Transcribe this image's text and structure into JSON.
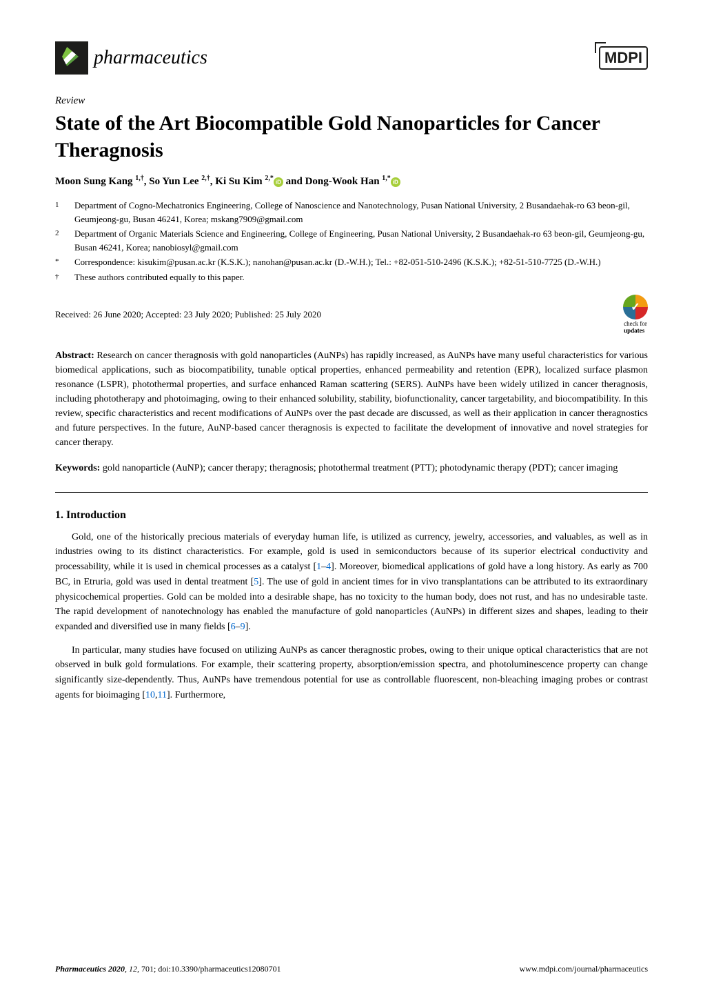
{
  "header": {
    "journal_name": "pharmaceutics",
    "publisher_logo": "MDPI"
  },
  "article": {
    "type": "Review",
    "title": "State of the Art Biocompatible Gold Nanoparticles for Cancer Theragnosis",
    "authors_html": "Moon Sung Kang <sup>1,†</sup>, So Yun Lee <sup>2,†</sup>, Ki Su Kim <sup>2,*</sup>",
    "authors_html2": " and Dong-Wook Han <sup>1,*</sup>"
  },
  "affiliations": [
    {
      "num": "1",
      "text": "Department of Cogno-Mechatronics Engineering, College of Nanoscience and Nanotechnology, Pusan National University, 2 Busandaehak-ro 63 beon-gil, Geumjeong-gu, Busan 46241, Korea; mskang7909@gmail.com"
    },
    {
      "num": "2",
      "text": "Department of Organic Materials Science and Engineering, College of Engineering, Pusan National University, 2 Busandaehak-ro 63 beon-gil, Geumjeong-gu, Busan 46241, Korea; nanobiosyl@gmail.com"
    },
    {
      "num": "*",
      "text": "Correspondence: kisukim@pusan.ac.kr (K.S.K.); nanohan@pusan.ac.kr (D.-W.H.); Tel.: +82-051-510-2496 (K.S.K.); +82-51-510-7725 (D.-W.H.)"
    },
    {
      "num": "†",
      "text": "These authors contributed equally to this paper."
    }
  ],
  "dates": {
    "received": "Received: 26 June 2020; Accepted: 23 July 2020; Published: 25 July 2020"
  },
  "check_updates": {
    "line1": "check for",
    "line2": "updates"
  },
  "abstract": {
    "label": "Abstract:",
    "text": " Research on cancer theragnosis with gold nanoparticles (AuNPs) has rapidly increased, as AuNPs have many useful characteristics for various biomedical applications, such as biocompatibility, tunable optical properties, enhanced permeability and retention (EPR), localized surface plasmon resonance (LSPR), photothermal properties, and surface enhanced Raman scattering (SERS). AuNPs have been widely utilized in cancer theragnosis, including phototherapy and photoimaging, owing to their enhanced solubility, stability, biofunctionality, cancer targetability, and biocompatibility. In this review, specific characteristics and recent modifications of AuNPs over the past decade are discussed, as well as their application in cancer theragnostics and future perspectives. In the future, AuNP-based cancer theragnosis is expected to facilitate the development of innovative and novel strategies for cancer therapy."
  },
  "keywords": {
    "label": "Keywords:",
    "text": " gold nanoparticle (AuNP); cancer therapy; theragnosis; photothermal treatment (PTT); photodynamic therapy (PDT); cancer imaging"
  },
  "section1": {
    "heading": "1. Introduction",
    "para1_a": "Gold, one of the historically precious materials of everyday human life, is utilized as currency, jewelry, accessories, and valuables, as well as in industries owing to its distinct characteristics. For example, gold is used in semiconductors because of its superior electrical conductivity and processability, while it is used in chemical processes as a catalyst [",
    "para1_ref1": "1",
    "para1_dash": "–",
    "para1_ref2": "4",
    "para1_b": "]. Moreover, biomedical applications of gold have a long history. As early as 700 BC, in Etruria, gold was used in dental treatment [",
    "para1_ref3": "5",
    "para1_c": "]. The use of gold in ancient times for in vivo transplantations can be attributed to its extraordinary physicochemical properties. Gold can be molded into a desirable shape, has no toxicity to the human body, does not rust, and has no undesirable taste. The rapid development of nanotechnology has enabled the manufacture of gold nanoparticles (AuNPs) in different sizes and shapes, leading to their expanded and diversified use in many fields [",
    "para1_ref4": "6",
    "para1_dash2": "–",
    "para1_ref5": "9",
    "para1_d": "].",
    "para2_a": "In particular, many studies have focused on utilizing AuNPs as cancer theragnostic probes, owing to their unique optical characteristics that are not observed in bulk gold formulations. For example, their scattering property, absorption/emission spectra, and photoluminescence property can change significantly size-dependently. Thus, AuNPs have tremendous potential for use as controllable fluorescent, non-bleaching imaging probes or contrast agents for bioimaging [",
    "para2_ref1": "10",
    "para2_comma": ",",
    "para2_ref2": "11",
    "para2_b": "]. Furthermore,"
  },
  "footer": {
    "left_journal": "Pharmaceutics",
    "left_year": " 2020",
    "left_vol": ", 12",
    "left_rest": ", 701; doi:10.3390/pharmaceutics12080701",
    "right": "www.mdpi.com/journal/pharmaceutics"
  },
  "colors": {
    "text": "#000000",
    "background": "#ffffff",
    "link": "#0066cc",
    "orcid": "#a6ce39",
    "logo_bg": "#1d1d1b"
  },
  "typography": {
    "title_fontsize": 30,
    "body_fontsize": 14,
    "affil_fontsize": 13,
    "footer_fontsize": 12,
    "journal_name_fontsize": 28
  }
}
